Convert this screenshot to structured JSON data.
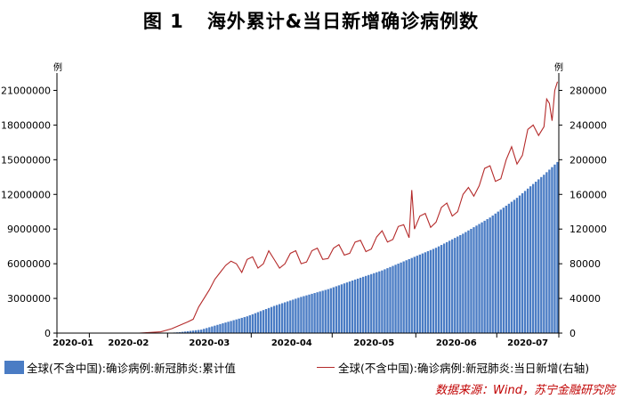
{
  "figure": {
    "number": "图 1",
    "title": "海外累计&当日新增确诊病例数",
    "source": "数据来源：Wind，苏宁金融研究院"
  },
  "colors": {
    "bar": "#4a7cc4",
    "line": "#b42a2a",
    "axis": "#000000",
    "source": "#c00000"
  },
  "chart_data": {
    "type": "bar+line",
    "title": "海外累计&当日新增确诊病例数",
    "x_tick_labels": [
      "2020-01",
      "2020-02",
      "2020-03",
      "2020-04",
      "2020-05",
      "2020-06",
      "2020-07"
    ],
    "y_left": {
      "unit": "例",
      "ticks": [
        0,
        3000000,
        6000000,
        9000000,
        12000000,
        15000000,
        18000000,
        21000000
      ],
      "tick_labels": [
        "0",
        "3000000",
        "6000000",
        "9000000",
        "12000000",
        "15000000",
        "18000000",
        "21000000"
      ],
      "ylim": [
        0,
        22500000
      ]
    },
    "y_right": {
      "unit": "例",
      "ticks": [
        0,
        40000,
        80000,
        120000,
        160000,
        200000,
        240000,
        280000
      ],
      "tick_labels": [
        "0",
        "40000",
        "80000",
        "120000",
        "160000",
        "200000",
        "240000",
        "280000"
      ],
      "ylim": [
        0,
        300000
      ]
    },
    "start_date": "2020-01-20",
    "days": 186,
    "series": [
      {
        "name": "全球(不含中国):确诊病例:新冠肺炎:累计值",
        "type": "bar",
        "axis": "left",
        "keypoints_day_value": [
          [
            0,
            0
          ],
          [
            25,
            200
          ],
          [
            40,
            5000
          ],
          [
            45,
            80000
          ],
          [
            53,
            300000
          ],
          [
            60,
            780000
          ],
          [
            70,
            1450000
          ],
          [
            80,
            2350000
          ],
          [
            90,
            3130000
          ],
          [
            100,
            3800000
          ],
          [
            110,
            4630000
          ],
          [
            120,
            5420000
          ],
          [
            130,
            6400000
          ],
          [
            140,
            7380000
          ],
          [
            150,
            8600000
          ],
          [
            160,
            10000000
          ],
          [
            170,
            11700000
          ],
          [
            180,
            13700000
          ],
          [
            185,
            14800000
          ]
        ]
      },
      {
        "name": "全球(不含中国):确诊病例:新冠肺炎:当日新增(右轴)",
        "type": "line",
        "axis": "right",
        "keypoints_day_value": [
          [
            0,
            0
          ],
          [
            30,
            0
          ],
          [
            38,
            1500
          ],
          [
            42,
            5000
          ],
          [
            45,
            9000
          ],
          [
            48,
            13000
          ],
          [
            50,
            16000
          ],
          [
            52,
            30000
          ],
          [
            54,
            40000
          ],
          [
            56,
            50000
          ],
          [
            58,
            62000
          ],
          [
            60,
            70000
          ],
          [
            62,
            78000
          ],
          [
            64,
            83000
          ],
          [
            66,
            80000
          ],
          [
            68,
            70000
          ],
          [
            70,
            85000
          ],
          [
            72,
            88000
          ],
          [
            74,
            75000
          ],
          [
            76,
            80000
          ],
          [
            78,
            95000
          ],
          [
            80,
            85000
          ],
          [
            82,
            75000
          ],
          [
            84,
            80000
          ],
          [
            86,
            92000
          ],
          [
            88,
            95000
          ],
          [
            90,
            80000
          ],
          [
            92,
            82000
          ],
          [
            94,
            95000
          ],
          [
            96,
            98000
          ],
          [
            98,
            85000
          ],
          [
            100,
            86000
          ],
          [
            102,
            98000
          ],
          [
            104,
            102000
          ],
          [
            106,
            90000
          ],
          [
            108,
            92000
          ],
          [
            110,
            105000
          ],
          [
            112,
            107000
          ],
          [
            114,
            94000
          ],
          [
            116,
            97000
          ],
          [
            118,
            111000
          ],
          [
            120,
            118000
          ],
          [
            122,
            105000
          ],
          [
            124,
            108000
          ],
          [
            126,
            123000
          ],
          [
            128,
            125000
          ],
          [
            130,
            110000
          ],
          [
            131,
            165000
          ],
          [
            132,
            120000
          ],
          [
            134,
            135000
          ],
          [
            136,
            138000
          ],
          [
            138,
            122000
          ],
          [
            140,
            128000
          ],
          [
            142,
            145000
          ],
          [
            144,
            150000
          ],
          [
            146,
            135000
          ],
          [
            148,
            140000
          ],
          [
            150,
            160000
          ],
          [
            152,
            168000
          ],
          [
            154,
            158000
          ],
          [
            156,
            170000
          ],
          [
            158,
            190000
          ],
          [
            160,
            193000
          ],
          [
            162,
            175000
          ],
          [
            164,
            178000
          ],
          [
            166,
            200000
          ],
          [
            168,
            215000
          ],
          [
            170,
            195000
          ],
          [
            172,
            205000
          ],
          [
            174,
            235000
          ],
          [
            176,
            240000
          ],
          [
            178,
            228000
          ],
          [
            180,
            238000
          ],
          [
            181,
            270000
          ],
          [
            182,
            265000
          ],
          [
            183,
            245000
          ],
          [
            184,
            280000
          ],
          [
            185,
            290000
          ]
        ]
      }
    ],
    "legend": [
      "全球(不含中国):确诊病例:新冠肺炎:累计值",
      "全球(不含中国):确诊病例:新冠肺炎:当日新增(右轴)"
    ]
  }
}
